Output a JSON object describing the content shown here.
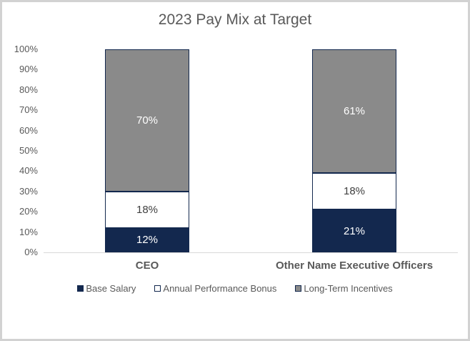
{
  "chart_data": {
    "type": "bar",
    "stacked": true,
    "title": "2023 Pay Mix at Target",
    "categories": [
      "CEO",
      "Other Name Executive Officers"
    ],
    "series": [
      {
        "name": "Base Salary",
        "values": [
          12,
          21
        ],
        "labels": [
          "12%",
          "21%"
        ],
        "fill": "#13284E",
        "border": "#13284E",
        "label_color": "#FFFFFF"
      },
      {
        "name": "Annual Performance Bonus",
        "values": [
          18,
          18
        ],
        "labels": [
          "18%",
          "18%"
        ],
        "fill": "#FFFFFF",
        "border": "#13284E",
        "label_color": "#404040"
      },
      {
        "name": "Long-Term Incentives",
        "values": [
          70,
          61
        ],
        "labels": [
          "70%",
          "61%"
        ],
        "fill": "#8A8A8A",
        "border": "#13284E",
        "label_color": "#FFFFFF"
      }
    ],
    "y_axis": {
      "min": 0,
      "max": 100,
      "ticks": [
        "0%",
        "10%",
        "20%",
        "30%",
        "40%",
        "50%",
        "60%",
        "70%",
        "80%",
        "90%",
        "100%"
      ]
    },
    "grid": false,
    "legend_position": "bottom"
  },
  "styles": {
    "title_color": "#595959",
    "axis_text_color": "#595959",
    "category_text_color": "#595959",
    "legend_text_color": "#595959",
    "axis_line_color": "#D9D9D9",
    "frame_border_color": "#D2D2D2",
    "background": "#FFFFFF"
  }
}
